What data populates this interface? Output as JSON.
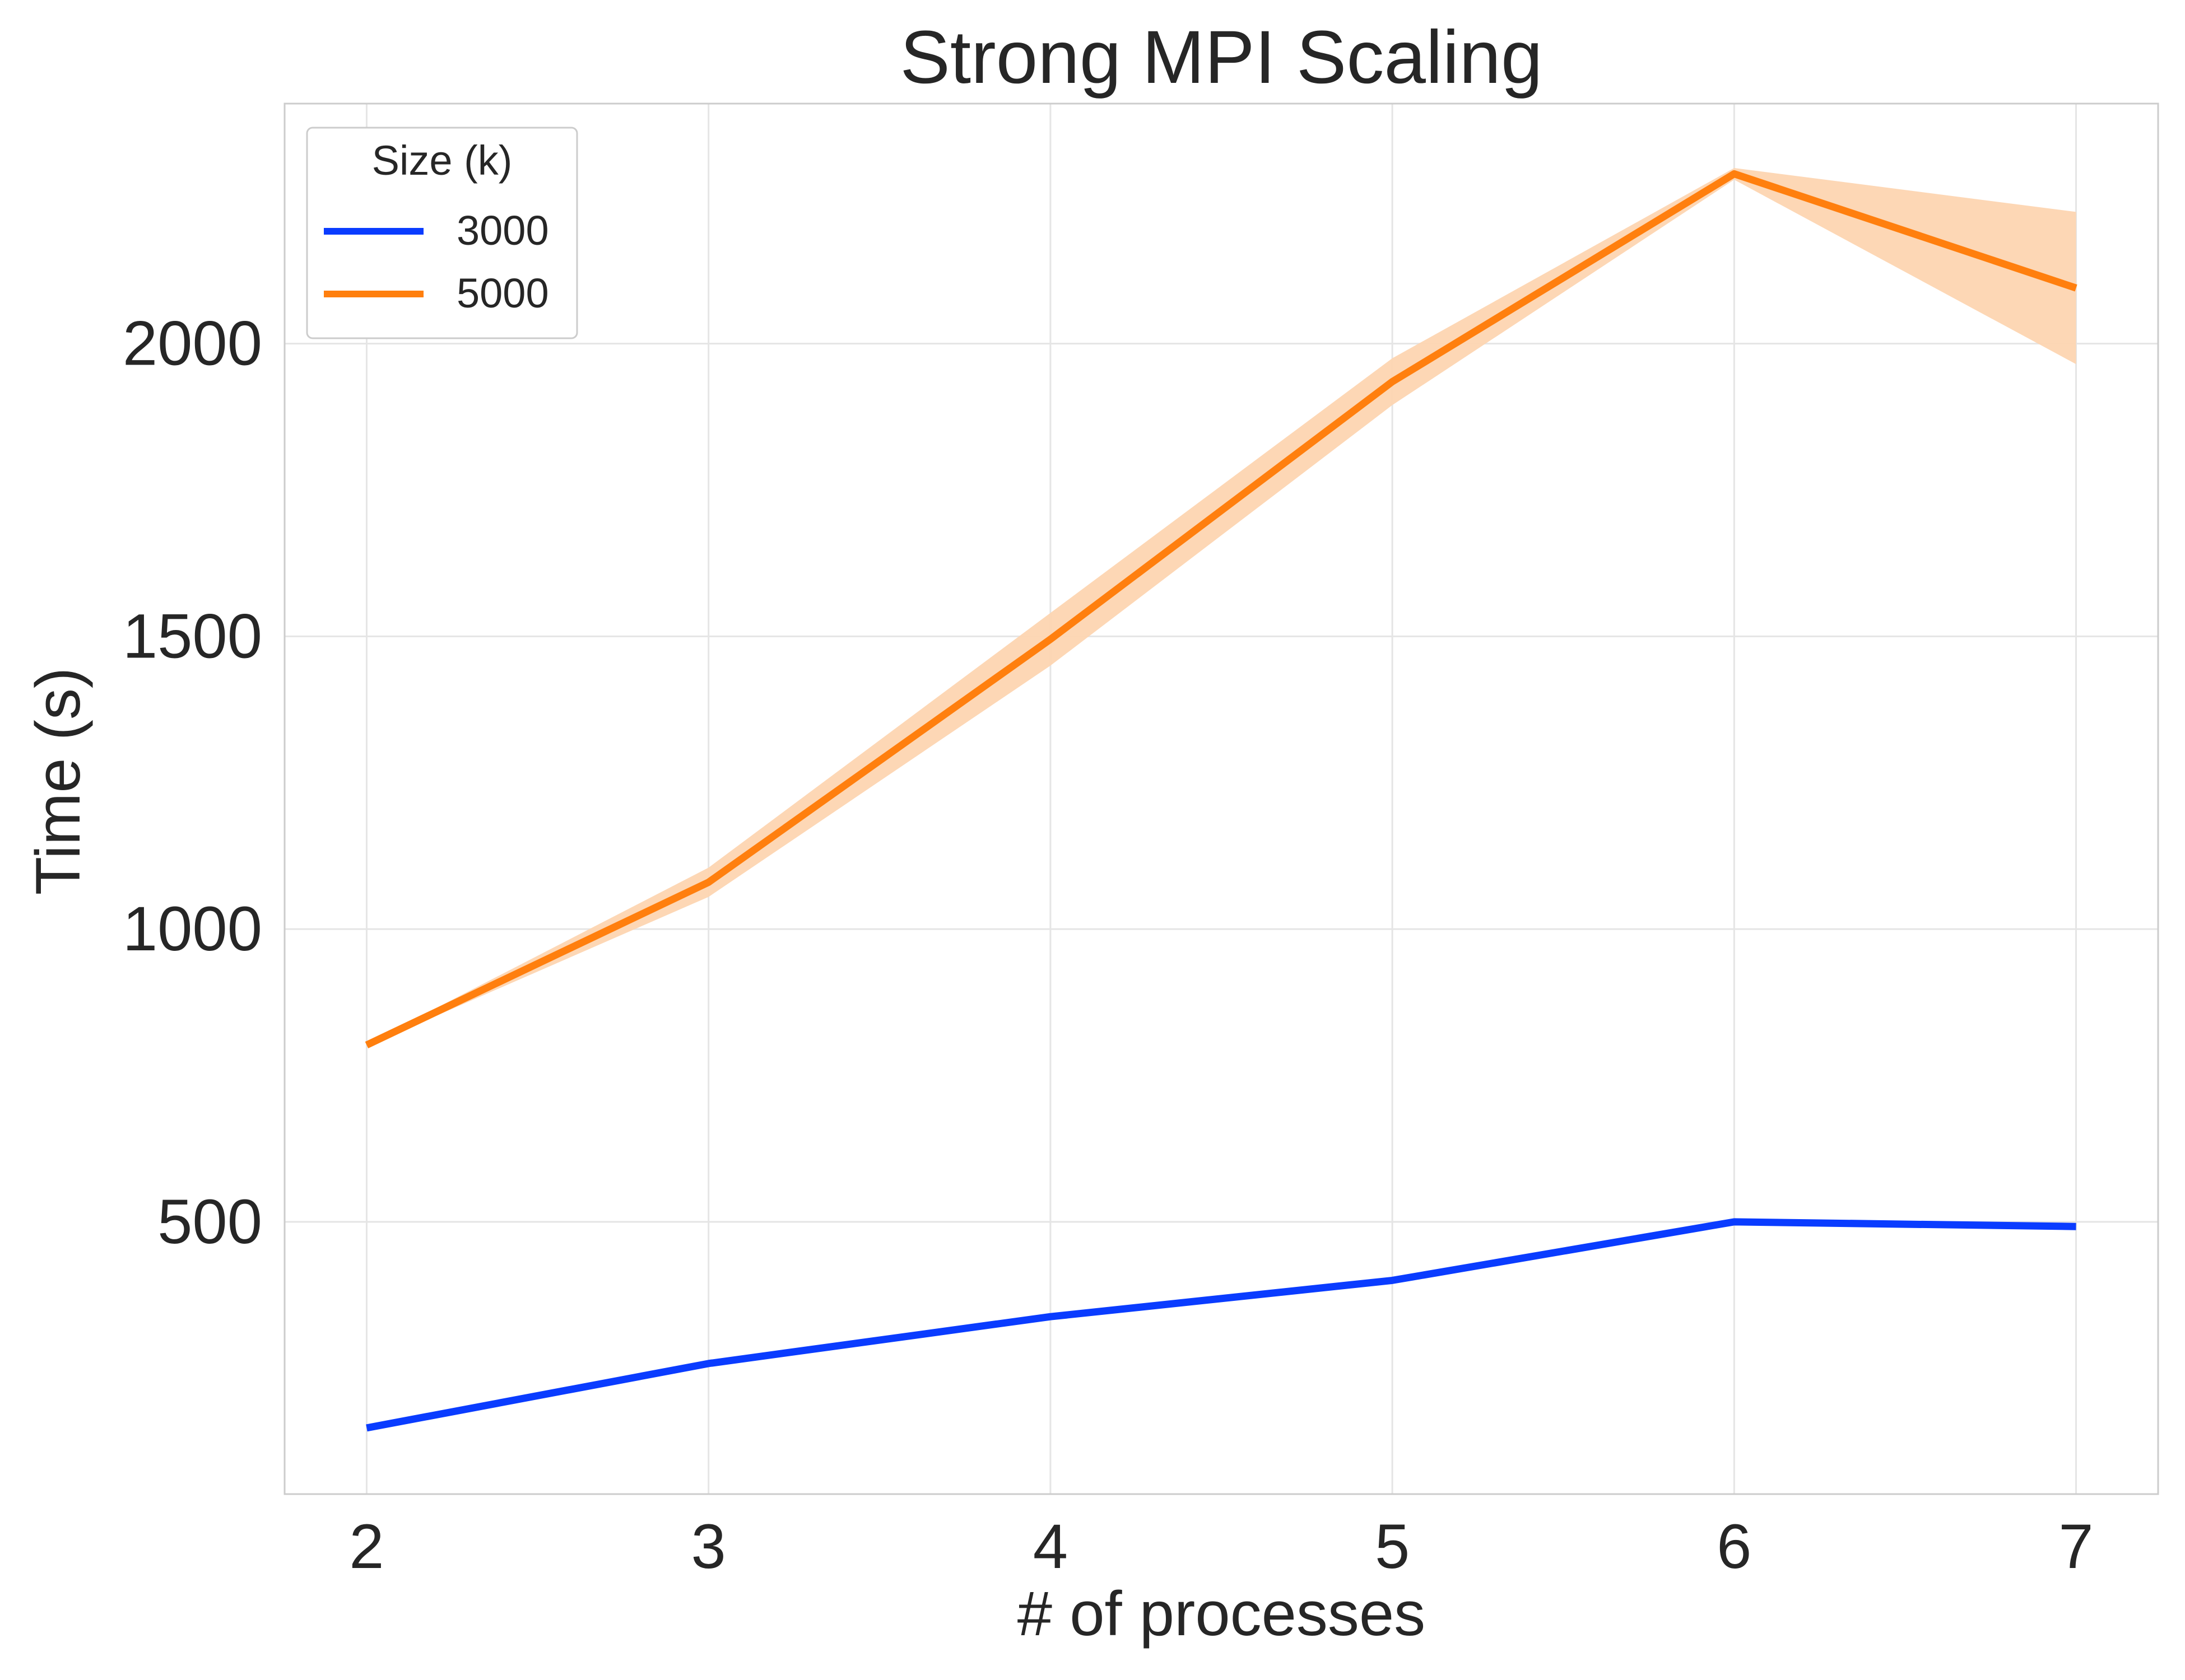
{
  "chart_data": {
    "type": "line",
    "title": "Strong MPI Scaling",
    "xlabel": "# of processes",
    "ylabel": "Time (s)",
    "x": [
      2,
      3,
      4,
      5,
      6,
      7
    ],
    "x_ticks": [
      "2",
      "3",
      "4",
      "5",
      "6",
      "7"
    ],
    "y_ticks": [
      "500",
      "1000",
      "1500",
      "2000"
    ],
    "y_tick_values": [
      500,
      1000,
      1500,
      2000
    ],
    "xlim": [
      1.76,
      7.24
    ],
    "ylim": [
      35,
      2410
    ],
    "grid": true,
    "legend": {
      "title": "Size (k)",
      "placement": "top-left"
    },
    "series": [
      {
        "name": "3000",
        "color": "#0a3cff",
        "values": [
          148,
          258,
          338,
          400,
          500,
          492
        ]
      },
      {
        "name": "5000",
        "color": "#ff7f0e",
        "band_color": "#fdd5b1",
        "values": [
          802,
          1080,
          1495,
          1935,
          2290,
          2095
        ],
        "band_low": [
          800,
          1055,
          1450,
          1895,
          2280,
          1965
        ],
        "band_high": [
          804,
          1105,
          1540,
          1975,
          2300,
          2225
        ]
      }
    ]
  }
}
